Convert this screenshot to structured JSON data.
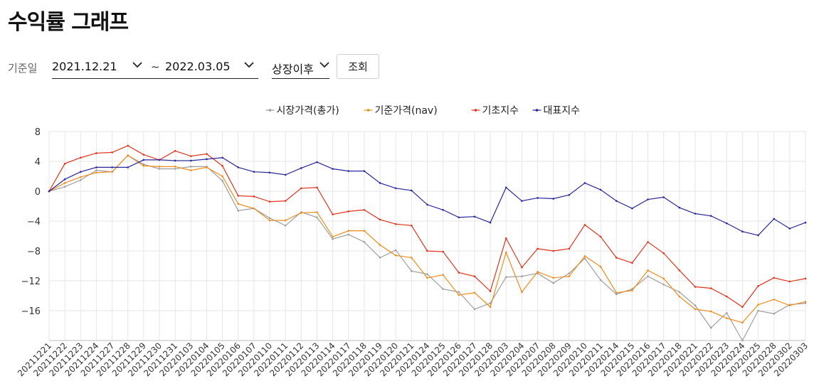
{
  "page": {
    "title": "수익률 그래프"
  },
  "filters": {
    "base_date_label": "기준일",
    "start_date": "2021.12.21",
    "separator": "~",
    "end_date": "2022.03.05",
    "period": "상장이후",
    "search_label": "조회"
  },
  "colors": {
    "market": "#9e9e9e",
    "nav": "#f08c1c",
    "base_index": "#e0341e",
    "rep_index": "#2a279a",
    "grid": "#e6e6e6"
  },
  "chart_data": {
    "type": "line",
    "title": "",
    "xlabel": "",
    "ylabel": "",
    "legend_position": "top-center",
    "grid": true,
    "ylim": [
      -20,
      8
    ],
    "yticks": [
      8,
      4,
      0,
      -4,
      -8,
      -12,
      -16
    ],
    "categories": [
      "20211221",
      "20211222",
      "20211223",
      "20211224",
      "20211227",
      "20211228",
      "20211229",
      "20211230",
      "20211231",
      "20220103",
      "20220104",
      "20220105",
      "20220106",
      "20220107",
      "20220110",
      "20220111",
      "20220112",
      "20220113",
      "20220114",
      "20220117",
      "20220118",
      "20220119",
      "20220120",
      "20220121",
      "20220124",
      "20220125",
      "20220126",
      "20220127",
      "20220128",
      "20220203",
      "20220204",
      "20220207",
      "20220208",
      "20220209",
      "20220210",
      "20220211",
      "20220214",
      "20220215",
      "20220216",
      "20220217",
      "20220218",
      "20220221",
      "20220222",
      "20220223",
      "20220224",
      "20220225",
      "20220228",
      "20220302",
      "20220303"
    ],
    "series": [
      {
        "name": "시장가격(총가)",
        "color_key": "market",
        "values": [
          0,
          0.6,
          1.5,
          2.8,
          2.6,
          4.8,
          3.6,
          3.0,
          3.0,
          3.3,
          3.3,
          1.4,
          -2.6,
          -2.3,
          -3.6,
          -4.6,
          -2.8,
          -3.5,
          -6.4,
          -5.8,
          -6.8,
          -8.9,
          -7.9,
          -10.7,
          -11.1,
          -13.1,
          -13.5,
          -15.8,
          -15.0,
          -11.5,
          -11.4,
          -11.0,
          -12.3,
          -11.0,
          -9.0,
          -11.9,
          -13.8,
          -13.1,
          -11.4,
          -12.5,
          -13.5,
          -15.3,
          -18.3,
          -16.3,
          -20.0,
          -16.0,
          -16.4,
          -15.2,
          -15.0
        ]
      },
      {
        "name": "기준가격(nav)",
        "color_key": "nav",
        "values": [
          0,
          1.1,
          1.9,
          2.5,
          2.6,
          4.8,
          3.4,
          3.3,
          3.3,
          2.8,
          3.2,
          2.0,
          -1.7,
          -2.3,
          -3.9,
          -3.9,
          -2.9,
          -2.8,
          -6.1,
          -5.3,
          -5.3,
          -7.2,
          -8.6,
          -8.9,
          -11.6,
          -11.2,
          -13.9,
          -13.6,
          -15.5,
          -8.2,
          -13.5,
          -10.8,
          -11.6,
          -11.4,
          -8.7,
          -10.1,
          -13.6,
          -13.3,
          -10.6,
          -11.7,
          -14.1,
          -15.8,
          -16.1,
          -17.0,
          -17.6,
          -15.2,
          -14.5,
          -15.3,
          -14.8
        ]
      },
      {
        "name": "기초지수",
        "color_key": "base_index",
        "values": [
          0,
          3.7,
          4.5,
          5.1,
          5.2,
          6.1,
          4.9,
          4.2,
          5.4,
          4.7,
          5.0,
          3.4,
          -0.6,
          -0.7,
          -1.4,
          -1.3,
          0.4,
          0.5,
          -3.1,
          -2.7,
          -2.5,
          -3.8,
          -4.4,
          -4.6,
          -8.0,
          -8.1,
          -10.9,
          -11.4,
          -13.4,
          -6.3,
          -10.2,
          -7.7,
          -8.0,
          -7.7,
          -4.5,
          -6.1,
          -8.9,
          -9.6,
          -6.8,
          -8.3,
          -10.6,
          -12.8,
          -13.0,
          -14.1,
          -15.5,
          -12.7,
          -11.6,
          -12.1,
          -11.7
        ]
      },
      {
        "name": "대표지수",
        "color_key": "rep_index",
        "values": [
          0,
          1.6,
          2.6,
          3.2,
          3.2,
          3.2,
          4.2,
          4.2,
          4.1,
          4.1,
          4.3,
          4.5,
          3.2,
          2.6,
          2.5,
          2.2,
          3.1,
          3.9,
          3.0,
          2.7,
          2.7,
          1.1,
          0.4,
          0.1,
          -1.8,
          -2.5,
          -3.5,
          -3.4,
          -4.2,
          0.5,
          -1.3,
          -0.9,
          -1.0,
          -0.5,
          1.1,
          0.2,
          -1.3,
          -2.3,
          -1.1,
          -0.8,
          -2.2,
          -3.0,
          -3.3,
          -4.3,
          -5.4,
          -5.9,
          -3.7,
          -5.0,
          -4.2
        ]
      }
    ]
  }
}
